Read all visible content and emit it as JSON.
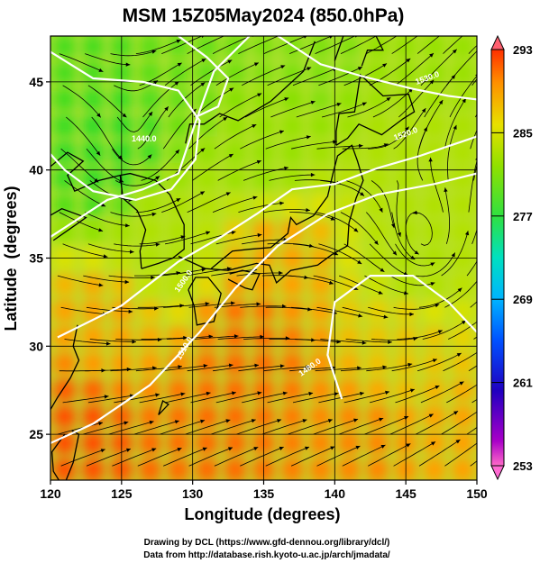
{
  "chart_data": {
    "type": "heatmap",
    "title": "MSM 15Z05May2024 (850.0hPa)",
    "xlabel": "Longitude (degrees)",
    "ylabel": "Latitude  (degrees)",
    "xlim": [
      120,
      150
    ],
    "ylim": [
      22.4,
      47.6
    ],
    "xticks": [
      "120",
      "125",
      "130",
      "135",
      "140",
      "145",
      "150"
    ],
    "yticks": [
      "25",
      "30",
      "35",
      "40",
      "45"
    ],
    "grid": true,
    "colorbar": {
      "range": [
        253,
        293
      ],
      "ticks": [
        "293",
        "285",
        "277",
        "269",
        "261",
        "253"
      ],
      "colors": [
        "#ff6ac8",
        "#a800c8",
        "#2000c0",
        "#0050ff",
        "#00b4ff",
        "#00e0c0",
        "#30e040",
        "#90e000",
        "#e8e000",
        "#ff9000",
        "#ff3000",
        "#ff6070"
      ]
    },
    "field_description": "850hPa temperature with streamlines and white geopotential height contours",
    "temperature_samples": [
      {
        "lon": 122,
        "lat": 47,
        "value": 278
      },
      {
        "lon": 130,
        "lat": 47,
        "value": 279
      },
      {
        "lon": 138,
        "lat": 47,
        "value": 280
      },
      {
        "lon": 146,
        "lat": 47,
        "value": 281
      },
      {
        "lon": 124,
        "lat": 41,
        "value": 277
      },
      {
        "lon": 135,
        "lat": 41,
        "value": 281
      },
      {
        "lon": 146,
        "lat": 41,
        "value": 282
      },
      {
        "lon": 128,
        "lat": 36,
        "value": 282
      },
      {
        "lon": 136,
        "lat": 35,
        "value": 286
      },
      {
        "lon": 146,
        "lat": 35,
        "value": 282
      },
      {
        "lon": 124,
        "lat": 31,
        "value": 286
      },
      {
        "lon": 134,
        "lat": 30,
        "value": 288
      },
      {
        "lon": 145,
        "lat": 30,
        "value": 285
      },
      {
        "lon": 122,
        "lat": 25,
        "value": 289
      },
      {
        "lon": 132,
        "lat": 25,
        "value": 288
      },
      {
        "lon": 142,
        "lat": 24,
        "value": 287
      },
      {
        "lon": 148,
        "lat": 24,
        "value": 286
      }
    ],
    "height_contours": [
      "1440.0",
      "1450.0",
      "1480.0",
      "1500.0",
      "1510.0",
      "1520.0",
      "1530.0"
    ]
  },
  "credits": {
    "line1": "Drawing by DCL (https://www.gfd-dennou.org/library/dcl/)",
    "line2": "Data from http://database.rish.kyoto-u.ac.jp/arch/jmadata/"
  }
}
